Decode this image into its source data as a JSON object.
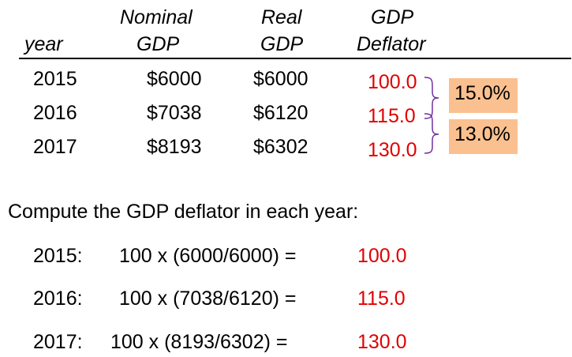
{
  "table": {
    "headers": {
      "year": "year",
      "nominal_line1": "Nominal",
      "nominal_line2": "GDP",
      "real_line1": "Real",
      "real_line2": "GDP",
      "deflator_line1": "GDP",
      "deflator_line2": "Deflator"
    },
    "rows": [
      {
        "year": "2015",
        "nominal": "$6000",
        "real": "$6000",
        "deflator": "100.0"
      },
      {
        "year": "2016",
        "nominal": "$7038",
        "real": "$6120",
        "deflator": "115.0"
      },
      {
        "year": "2017",
        "nominal": "$8193",
        "real": "$6302",
        "deflator": "130.0"
      }
    ],
    "growth": [
      "15.0%",
      "13.0%"
    ]
  },
  "prompt": "Compute the GDP deflator in each year:",
  "computations": [
    {
      "label": "2015:",
      "formula": "100 x (6000/6000)  =",
      "result": "100.0"
    },
    {
      "label": "2016:",
      "formula": "100 x (7038/6120)  =",
      "result": "115.0"
    },
    {
      "label": "2017:",
      "formula": "100 x (8193/6302) =",
      "result": "130.0"
    }
  ],
  "colors": {
    "result": "#e00000",
    "badge": "#fac08f",
    "brace": "#7030a0"
  }
}
